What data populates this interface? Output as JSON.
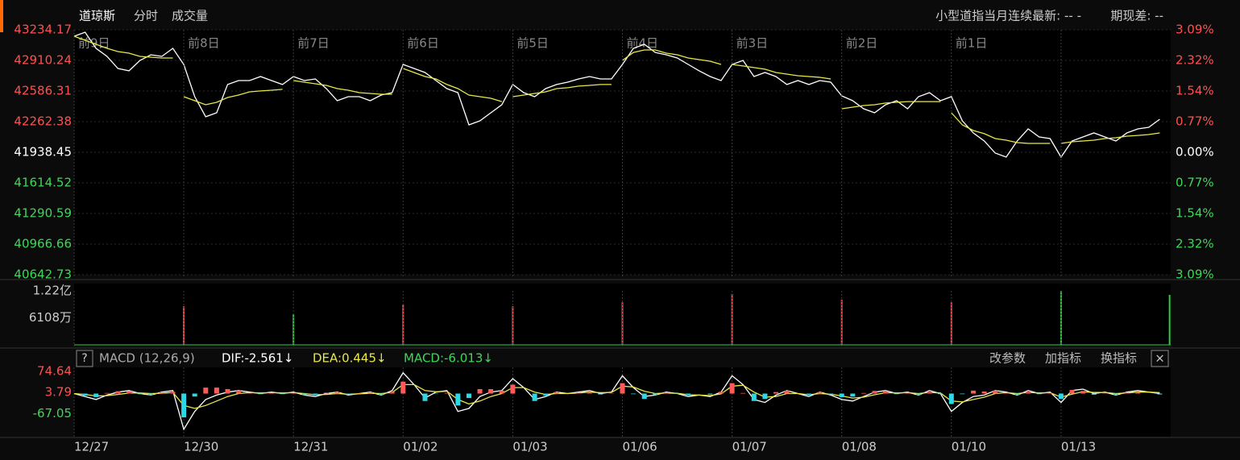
{
  "header": {
    "title": "道琼斯",
    "tabs": [
      "分时",
      "成交量"
    ],
    "right": [
      "小型道指当月连续最新: -- -",
      "期现差: --"
    ]
  },
  "macd_header": {
    "help": "?",
    "name": "MACD (12,26,9)",
    "dif": "DIF:-2.561↓",
    "dea": "DEA:0.445↓",
    "macd": "MACD:-6.013↓",
    "buttons": [
      "改参数",
      "加指标",
      "换指标"
    ],
    "close": "×"
  },
  "chart_data": [
    {
      "type": "line",
      "xlim": [
        0,
        10
      ],
      "ylim": [
        40642.73,
        43234.17
      ],
      "base": 41938.45,
      "yticks": [
        43234.17,
        42910.24,
        42586.31,
        42262.38,
        41938.45,
        41614.52,
        41290.59,
        40966.66,
        40642.73
      ],
      "y2lim": [
        -3.09,
        3.09
      ],
      "y2ticks": [
        {
          "value": 3.09,
          "label": "3.09%"
        },
        {
          "value": 2.32,
          "label": "2.32%"
        },
        {
          "value": 1.54,
          "label": "1.54%"
        },
        {
          "value": 0.77,
          "label": "0.77%"
        },
        {
          "value": 0,
          "label": "0.00%"
        },
        {
          "value": -0.77,
          "label": "0.77%"
        },
        {
          "value": -1.54,
          "label": "1.54%"
        },
        {
          "value": -2.32,
          "label": "2.32%"
        },
        {
          "value": -3.09,
          "label": "3.09%"
        }
      ],
      "annotations": [
        {
          "text": "前9日",
          "x": 0
        },
        {
          "text": "前8日",
          "x": 1
        },
        {
          "text": "前7日",
          "x": 2
        },
        {
          "text": "前6日",
          "x": 3
        },
        {
          "text": "前5日",
          "x": 4
        },
        {
          "text": "前4日",
          "x": 5
        },
        {
          "text": "前3日",
          "x": 6
        },
        {
          "text": "前2日",
          "x": 7
        },
        {
          "text": "前1日",
          "x": 8
        }
      ],
      "grid": true,
      "x": [
        0,
        0.1,
        0.2,
        0.3,
        0.4,
        0.5,
        0.6,
        0.7,
        0.8,
        0.9,
        1,
        1.1,
        1.2,
        1.3,
        1.4,
        1.5,
        1.6,
        1.7,
        1.8,
        1.9,
        2,
        2.1,
        2.2,
        2.3,
        2.4,
        2.5,
        2.6,
        2.7,
        2.8,
        2.9,
        3,
        3.1,
        3.2,
        3.3,
        3.4,
        3.5,
        3.6,
        3.7,
        3.8,
        3.9,
        4,
        4.1,
        4.2,
        4.3,
        4.4,
        4.5,
        4.6,
        4.7,
        4.8,
        4.9,
        5,
        5.1,
        5.2,
        5.3,
        5.4,
        5.5,
        5.6,
        5.7,
        5.8,
        5.9,
        6,
        6.1,
        6.2,
        6.3,
        6.4,
        6.5,
        6.6,
        6.7,
        6.8,
        6.9,
        7,
        7.1,
        7.2,
        7.3,
        7.4,
        7.5,
        7.6,
        7.7,
        7.8,
        7.9,
        8,
        8.1,
        8.2,
        8.3,
        8.4,
        8.5,
        8.6,
        8.7,
        8.8,
        8.9,
        9,
        9.1,
        9.2,
        9.3,
        9.4,
        9.5,
        9.6,
        9.7,
        9.8,
        9.9
      ],
      "series": [
        {
          "color": "#ffffff",
          "values": [
            43166,
            43209,
            43038,
            42953,
            42825,
            42800,
            42910,
            42970,
            42953,
            43038,
            42868,
            42527,
            42314,
            42356,
            42655,
            42697,
            42697,
            42740,
            42697,
            42655,
            42740,
            42697,
            42714,
            42612,
            42484,
            42527,
            42527,
            42484,
            42544,
            42569,
            42868,
            42825,
            42782,
            42697,
            42612,
            42569,
            42228,
            42271,
            42356,
            42441,
            42655,
            42569,
            42527,
            42612,
            42655,
            42680,
            42714,
            42740,
            42714,
            42714,
            42868,
            43038,
            43081,
            42995,
            42970,
            42936,
            42868,
            42800,
            42740,
            42697,
            42868,
            42910,
            42740,
            42782,
            42740,
            42655,
            42697,
            42655,
            42697,
            42680,
            42535,
            42484,
            42399,
            42356,
            42441,
            42484,
            42399,
            42527,
            42569,
            42484,
            42527,
            42271,
            42143,
            42058,
            41930,
            41887,
            42058,
            42186,
            42100,
            42083,
            41887,
            42058,
            42100,
            42143,
            42100,
            42058,
            42143,
            42186,
            42203,
            42288
          ]
        },
        {
          "color": "#e8e84a",
          "break_by_day": true,
          "values": [
            43166,
            43123,
            43081,
            43038,
            43004,
            42987,
            42953,
            42944,
            42936,
            42936,
            42527,
            42484,
            42441,
            42467,
            42518,
            42544,
            42578,
            42587,
            42595,
            42604,
            42697,
            42680,
            42663,
            42646,
            42612,
            42595,
            42569,
            42561,
            42552,
            42552,
            42825,
            42782,
            42740,
            42714,
            42655,
            42612,
            42544,
            42527,
            42510,
            42475,
            42527,
            42544,
            42561,
            42578,
            42612,
            42621,
            42638,
            42646,
            42655,
            42655,
            42910,
            42995,
            43021,
            43021,
            42987,
            42970,
            42936,
            42919,
            42902,
            42868,
            42868,
            42851,
            42834,
            42817,
            42782,
            42765,
            42748,
            42740,
            42731,
            42714,
            42399,
            42416,
            42433,
            42441,
            42459,
            42467,
            42475,
            42475,
            42475,
            42475,
            42356,
            42228,
            42169,
            42135,
            42083,
            42066,
            42041,
            42032,
            42032,
            42032,
            42032,
            42049,
            42058,
            42066,
            42083,
            42092,
            42109,
            42117,
            42126,
            42143
          ]
        }
      ]
    },
    {
      "type": "bar",
      "xlim": [
        0,
        10
      ],
      "ylim": [
        0,
        122000000
      ],
      "yticks": [
        {
          "value": 122000000,
          "label": "1.22亿"
        },
        {
          "value": 61080000,
          "label": "6108万"
        }
      ],
      "x": [
        1,
        2,
        3,
        4,
        5,
        6,
        7,
        8,
        9,
        9.99
      ],
      "values": [
        87000000,
        69000000,
        91000000,
        87000000,
        96000000,
        115000000,
        102000000,
        96000000,
        122000000,
        113000000
      ],
      "colors": [
        "#ff4a4a",
        "#2ecc40",
        "#ff4a4a",
        "#ff4a4a",
        "#ff4a4a",
        "#ff4a4a",
        "#ff4a4a",
        "#ff4a4a",
        "#2ecc40",
        "#2ecc40"
      ]
    },
    {
      "type": "macd",
      "xlim": [
        0,
        10
      ],
      "ylim": [
        -139.2,
        88
      ],
      "yticks": [
        74.64,
        3.79,
        -67.05
      ],
      "xticks": [
        {
          "value": 0,
          "label": "12/27"
        },
        {
          "value": 1,
          "label": "12/30"
        },
        {
          "value": 2,
          "label": "12/31"
        },
        {
          "value": 3,
          "label": "01/02"
        },
        {
          "value": 4,
          "label": "01/03"
        },
        {
          "value": 5,
          "label": "01/06"
        },
        {
          "value": 6,
          "label": "01/07"
        },
        {
          "value": 7,
          "label": "01/08"
        },
        {
          "value": 8,
          "label": "01/10"
        },
        {
          "value": 9,
          "label": "01/13"
        }
      ],
      "x": [
        0,
        0.1,
        0.2,
        0.3,
        0.4,
        0.5,
        0.6,
        0.7,
        0.8,
        0.9,
        1,
        1.1,
        1.2,
        1.3,
        1.4,
        1.5,
        1.6,
        1.7,
        1.8,
        1.9,
        2,
        2.1,
        2.2,
        2.3,
        2.4,
        2.5,
        2.6,
        2.7,
        2.8,
        2.9,
        3,
        3.1,
        3.2,
        3.3,
        3.4,
        3.5,
        3.6,
        3.7,
        3.8,
        3.9,
        4,
        4.1,
        4.2,
        4.3,
        4.4,
        4.5,
        4.6,
        4.7,
        4.8,
        4.9,
        5,
        5.1,
        5.2,
        5.3,
        5.4,
        5.5,
        5.6,
        5.7,
        5.8,
        5.9,
        6,
        6.1,
        6.2,
        6.3,
        6.4,
        6.5,
        6.6,
        6.7,
        6.8,
        6.9,
        7,
        7.1,
        7.2,
        7.3,
        7.4,
        7.5,
        7.6,
        7.7,
        7.8,
        7.9,
        8,
        8.1,
        8.2,
        8.3,
        8.4,
        8.5,
        8.6,
        8.7,
        8.8,
        8.9,
        9,
        9.1,
        9.2,
        9.3,
        9.4,
        9.5,
        9.6,
        9.7,
        9.8,
        9.9
      ],
      "pos_color": "#ff5a5a",
      "neg_color": "#2ad8e8",
      "series": [
        {
          "color": "#ffffff",
          "values": [
            0,
            -10,
            -20,
            -5,
            5,
            10,
            0,
            -5,
            5,
            10,
            -120,
            -60,
            -20,
            -5,
            5,
            10,
            5,
            0,
            5,
            0,
            5,
            -5,
            -10,
            0,
            5,
            -5,
            0,
            5,
            -5,
            10,
            70,
            30,
            -15,
            5,
            10,
            -60,
            -50,
            -10,
            5,
            10,
            50,
            20,
            -20,
            -10,
            5,
            0,
            5,
            10,
            0,
            5,
            60,
            20,
            -10,
            -5,
            5,
            0,
            -10,
            -5,
            -10,
            5,
            60,
            30,
            -20,
            -30,
            -5,
            10,
            0,
            -10,
            5,
            -5,
            -20,
            -25,
            -10,
            5,
            10,
            0,
            5,
            -5,
            10,
            0,
            -60,
            -30,
            -10,
            -5,
            10,
            5,
            -5,
            10,
            0,
            5,
            -30,
            10,
            15,
            0,
            5,
            -5,
            5,
            10,
            5,
            0
          ]
        },
        {
          "color": "#e8e84a",
          "values": [
            0,
            -3,
            -8,
            -7,
            -3,
            2,
            2,
            0,
            1,
            4,
            -40,
            -50,
            -40,
            -25,
            -10,
            0,
            3,
            2,
            3,
            2,
            3,
            0,
            -4,
            -3,
            0,
            -2,
            -1,
            1,
            0,
            4,
            30,
            30,
            10,
            6,
            8,
            -20,
            -35,
            -25,
            -10,
            0,
            20,
            20,
            5,
            -3,
            0,
            0,
            2,
            5,
            3,
            4,
            25,
            22,
            8,
            0,
            2,
            1,
            -4,
            -5,
            -7,
            -1,
            25,
            28,
            5,
            -12,
            -10,
            0,
            0,
            -4,
            0,
            -2,
            -8,
            -15,
            -12,
            -4,
            3,
            2,
            3,
            0,
            4,
            2,
            -25,
            -28,
            -20,
            -12,
            0,
            3,
            0,
            4,
            2,
            3,
            -12,
            -2,
            6,
            4,
            4,
            0,
            2,
            5,
            5,
            3
          ]
        },
        {
          "type": "bar",
          "values": [
            0,
            -7,
            -12,
            2,
            8,
            8,
            -2,
            -5,
            4,
            6,
            -80,
            -10,
            20,
            20,
            15,
            10,
            2,
            -2,
            2,
            -2,
            2,
            -5,
            -6,
            3,
            5,
            -3,
            1,
            4,
            -5,
            6,
            40,
            0,
            -25,
            -1,
            2,
            -40,
            -15,
            15,
            15,
            10,
            30,
            0,
            -25,
            -7,
            5,
            0,
            3,
            5,
            -3,
            1,
            35,
            -2,
            -18,
            -5,
            3,
            -1,
            -6,
            0,
            -3,
            6,
            35,
            2,
            -25,
            -18,
            5,
            10,
            0,
            -6,
            5,
            -3,
            -12,
            -10,
            2,
            9,
            7,
            -2,
            2,
            -5,
            6,
            -2,
            -35,
            -2,
            10,
            7,
            10,
            2,
            -5,
            6,
            -2,
            2,
            -18,
            12,
            9,
            -4,
            1,
            -5,
            3,
            5,
            0,
            -3
          ]
        }
      ]
    }
  ]
}
